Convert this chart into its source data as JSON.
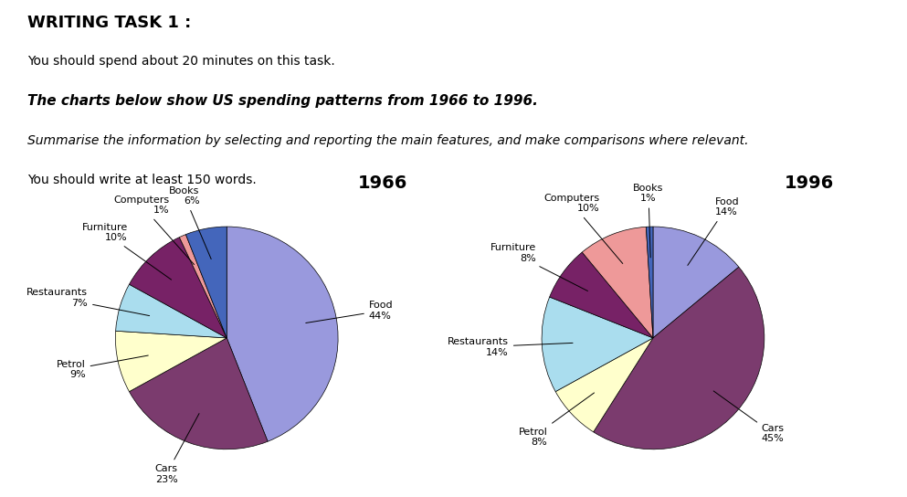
{
  "title_main": "WRITING TASK 1 :",
  "subtitle1": "You should spend about 20 minutes on this task.",
  "subtitle2": "The charts below show US spending patterns from 1966 to 1996.",
  "subtitle3": "Summarise the information by selecting and reporting the main features, and make comparisons where relevant.",
  "subtitle4": "You should write at least 150 words.",
  "chart1_title": "1966",
  "chart1_labels": [
    "Food",
    "Cars",
    "Petrol",
    "Restaurants",
    "Furniture",
    "Computers",
    "Books"
  ],
  "chart1_values": [
    44,
    23,
    9,
    7,
    10,
    1,
    6
  ],
  "chart1_colors": [
    "#9999dd",
    "#7b3b6e",
    "#ffffcc",
    "#aaddee",
    "#772266",
    "#ee9999",
    "#4466bb"
  ],
  "chart2_title": "1996",
  "chart2_labels": [
    "Food",
    "Cars",
    "Petrol",
    "Restaurants",
    "Furniture",
    "Computers",
    "Books"
  ],
  "chart2_values": [
    14,
    45,
    8,
    14,
    8,
    10,
    1
  ],
  "chart2_colors": [
    "#9999dd",
    "#7b3b6e",
    "#ffffcc",
    "#aaddee",
    "#772266",
    "#ee9999",
    "#4466bb"
  ],
  "bg_color": "#ffffff"
}
